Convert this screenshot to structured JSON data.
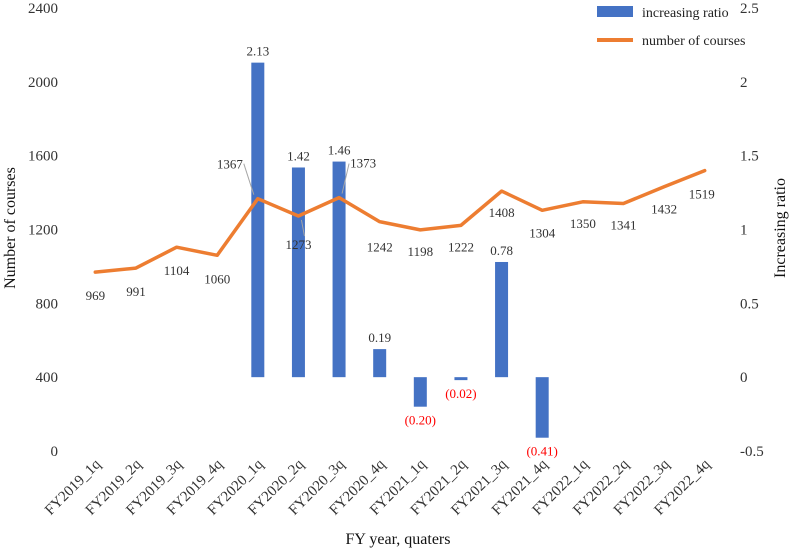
{
  "chart_data": {
    "type": "bar+line",
    "title": "",
    "xlabel": "FY year, quaters",
    "ylabel_left": "Number of courses",
    "ylabel_right": "Increasing ratio",
    "categories": [
      "FY2019_1q",
      "FY2019_2q",
      "FY2019_3q",
      "FY2019_4q",
      "FY2020_1q",
      "FY2020_2q",
      "FY2020_3q",
      "FY2020_4q",
      "FY2021_1q",
      "FY2021_2q",
      "FY2021_3q",
      "FY2021_4q",
      "FY2022_1q",
      "FY2022_2q",
      "FY2022_3q",
      "FY2022_4q"
    ],
    "series": [
      {
        "name": "increasing ratio",
        "type": "bar",
        "axis": "right",
        "color": "#4472c4",
        "values": [
          null,
          null,
          null,
          null,
          2.13,
          1.42,
          1.46,
          0.19,
          -0.2,
          -0.02,
          0.78,
          -0.41,
          null,
          null,
          null,
          null
        ],
        "labels": [
          "",
          "",
          "",
          "",
          "2.13",
          "1.42",
          "1.46",
          "0.19",
          "(0.20)",
          "(0.02)",
          "0.78",
          "(0.41)",
          "",
          "",
          "",
          ""
        ]
      },
      {
        "name": "number of courses",
        "type": "line",
        "axis": "left",
        "color": "#ed7d31",
        "values": [
          969,
          991,
          1104,
          1060,
          1367,
          1273,
          1373,
          1242,
          1198,
          1222,
          1408,
          1304,
          1350,
          1341,
          1432,
          1519
        ],
        "labels": [
          "969",
          "991",
          "1104",
          "1060",
          "1367",
          "1273",
          "1373",
          "1242",
          "1198",
          "1222",
          "1408",
          "1304",
          "1350",
          "1341",
          "1432",
          "1519"
        ]
      }
    ],
    "y_left": {
      "range": [
        0,
        2400
      ],
      "ticks": [
        "0",
        "400",
        "800",
        "1200",
        "1600",
        "2000",
        "2400"
      ]
    },
    "y_right": {
      "range": [
        -0.5,
        2.5
      ],
      "ticks": [
        "-0.5",
        "0",
        "0.5",
        "1",
        "1.5",
        "2",
        "2.5"
      ]
    },
    "negative_label_color": "#ff0000",
    "grid": false,
    "legend": "top-right"
  }
}
